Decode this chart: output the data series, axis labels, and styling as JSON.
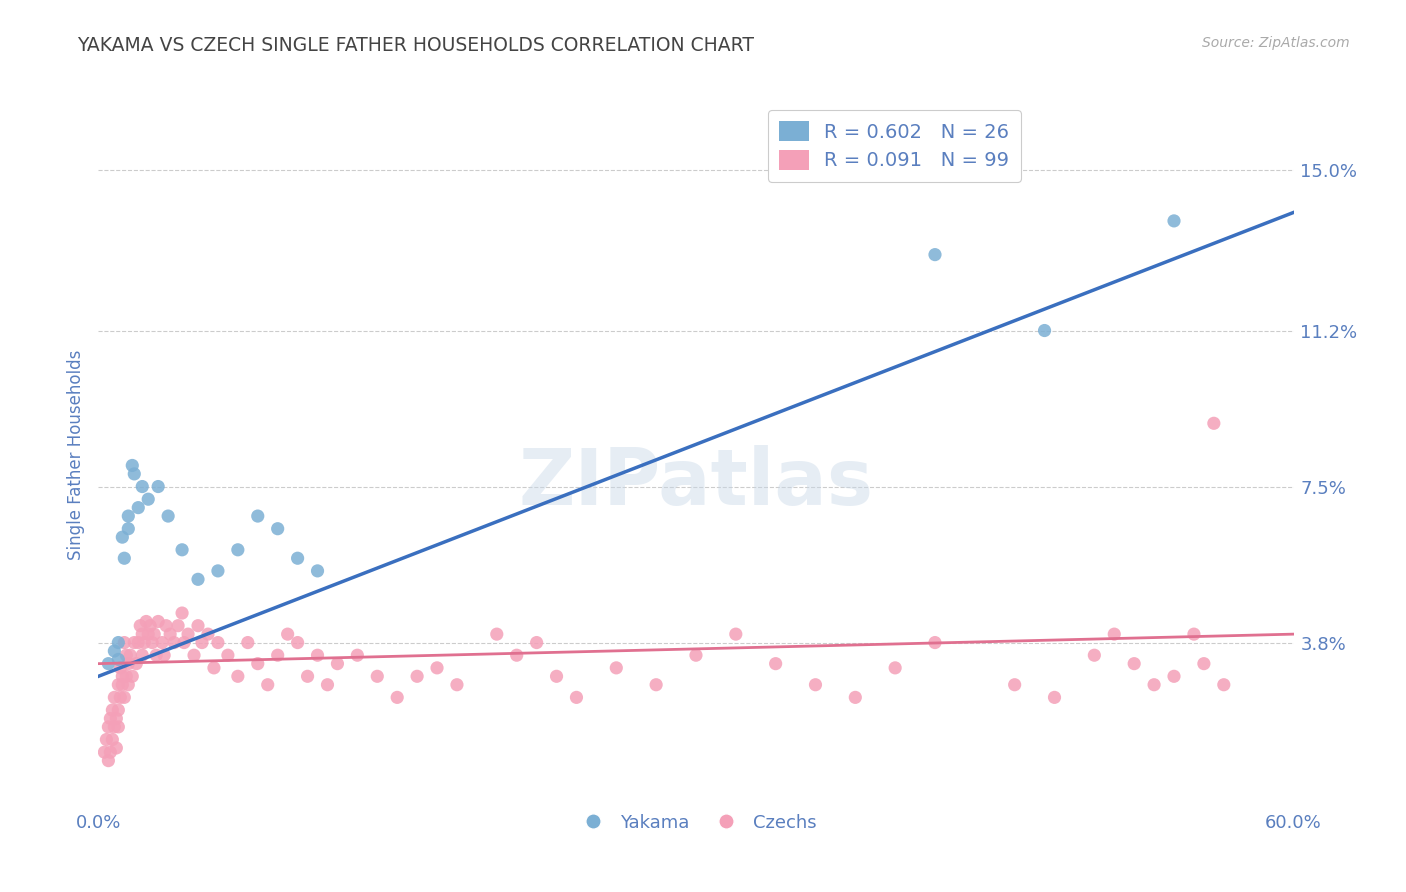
{
  "title": "YAKAMA VS CZECH SINGLE FATHER HOUSEHOLDS CORRELATION CHART",
  "source": "Source: ZipAtlas.com",
  "ylabel": "Single Father Households",
  "xlabel_ticks": [
    "0.0%",
    "60.0%"
  ],
  "ytick_labels": [
    "3.8%",
    "7.5%",
    "11.2%",
    "15.0%"
  ],
  "ytick_values": [
    0.038,
    0.075,
    0.112,
    0.15
  ],
  "xmin": 0.0,
  "xmax": 0.6,
  "ymin": 0.0,
  "ymax": 0.165,
  "legend_entries": [
    {
      "label": "R = 0.602   N = 26",
      "color": "#a8c4e0"
    },
    {
      "label": "R = 0.091   N = 99",
      "color": "#f4b8c8"
    }
  ],
  "legend_series": [
    "Yakama",
    "Czechs"
  ],
  "watermark": "ZIPatlas",
  "yakama_color": "#7bafd4",
  "czech_color": "#f4a0b8",
  "yakama_line_color": "#3a6fbf",
  "czech_line_color": "#e07090",
  "background_color": "#ffffff",
  "grid_color": "#cccccc",
  "title_color": "#444444",
  "axis_label_color": "#5a7fbf",
  "yakama_x": [
    0.005,
    0.008,
    0.01,
    0.01,
    0.012,
    0.013,
    0.015,
    0.015,
    0.017,
    0.018,
    0.02,
    0.022,
    0.025,
    0.03,
    0.035,
    0.042,
    0.05,
    0.06,
    0.07,
    0.08,
    0.09,
    0.1,
    0.11,
    0.42,
    0.475,
    0.54
  ],
  "yakama_y": [
    0.033,
    0.036,
    0.034,
    0.038,
    0.063,
    0.058,
    0.065,
    0.068,
    0.08,
    0.078,
    0.07,
    0.075,
    0.072,
    0.075,
    0.068,
    0.06,
    0.053,
    0.055,
    0.06,
    0.068,
    0.065,
    0.058,
    0.055,
    0.13,
    0.112,
    0.138
  ],
  "czech_x": [
    0.003,
    0.004,
    0.005,
    0.005,
    0.006,
    0.006,
    0.007,
    0.007,
    0.008,
    0.008,
    0.009,
    0.009,
    0.01,
    0.01,
    0.01,
    0.011,
    0.011,
    0.012,
    0.012,
    0.013,
    0.013,
    0.014,
    0.014,
    0.015,
    0.015,
    0.016,
    0.017,
    0.018,
    0.019,
    0.02,
    0.021,
    0.022,
    0.022,
    0.023,
    0.024,
    0.025,
    0.026,
    0.027,
    0.028,
    0.029,
    0.03,
    0.032,
    0.033,
    0.034,
    0.036,
    0.038,
    0.04,
    0.042,
    0.043,
    0.045,
    0.048,
    0.05,
    0.052,
    0.055,
    0.058,
    0.06,
    0.065,
    0.07,
    0.075,
    0.08,
    0.085,
    0.09,
    0.095,
    0.1,
    0.105,
    0.11,
    0.115,
    0.12,
    0.13,
    0.14,
    0.15,
    0.16,
    0.17,
    0.18,
    0.2,
    0.21,
    0.22,
    0.23,
    0.24,
    0.26,
    0.28,
    0.3,
    0.32,
    0.34,
    0.36,
    0.38,
    0.4,
    0.42,
    0.46,
    0.48,
    0.5,
    0.51,
    0.52,
    0.53,
    0.54,
    0.55,
    0.555,
    0.56,
    0.565
  ],
  "czech_y": [
    0.012,
    0.015,
    0.01,
    0.018,
    0.012,
    0.02,
    0.015,
    0.022,
    0.018,
    0.025,
    0.013,
    0.02,
    0.028,
    0.022,
    0.018,
    0.032,
    0.025,
    0.03,
    0.028,
    0.025,
    0.038,
    0.03,
    0.035,
    0.033,
    0.028,
    0.035,
    0.03,
    0.038,
    0.033,
    0.038,
    0.042,
    0.035,
    0.04,
    0.038,
    0.043,
    0.04,
    0.042,
    0.038,
    0.04,
    0.035,
    0.043,
    0.038,
    0.035,
    0.042,
    0.04,
    0.038,
    0.042,
    0.045,
    0.038,
    0.04,
    0.035,
    0.042,
    0.038,
    0.04,
    0.032,
    0.038,
    0.035,
    0.03,
    0.038,
    0.033,
    0.028,
    0.035,
    0.04,
    0.038,
    0.03,
    0.035,
    0.028,
    0.033,
    0.035,
    0.03,
    0.025,
    0.03,
    0.032,
    0.028,
    0.04,
    0.035,
    0.038,
    0.03,
    0.025,
    0.032,
    0.028,
    0.035,
    0.04,
    0.033,
    0.028,
    0.025,
    0.032,
    0.038,
    0.028,
    0.025,
    0.035,
    0.04,
    0.033,
    0.028,
    0.03,
    0.04,
    0.033,
    0.09,
    0.028
  ],
  "yakama_trendline": [
    0.03,
    0.14
  ],
  "czech_trendline": [
    0.033,
    0.04
  ]
}
